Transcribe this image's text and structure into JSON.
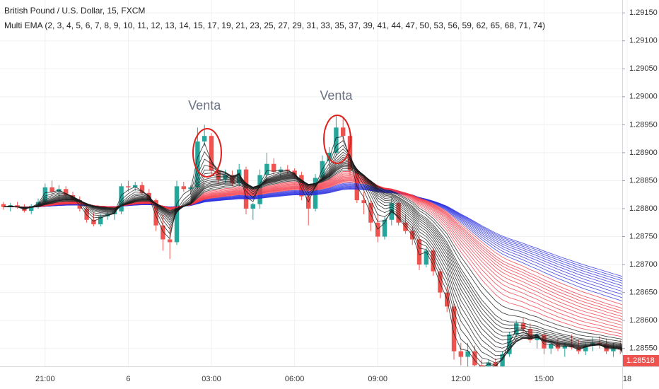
{
  "chart_data": {
    "type": "candlestick",
    "title": "British Pound / U.S. Dollar, 15, FXCM",
    "indicator_label": "Multi EMA (2, 3, 4, 5, 6, 7, 8, 9, 10, 11, 12, 13, 14, 15, 17, 19, 21, 23, 25, 27, 29, 31, 33, 35, 37, 39, 41, 44, 47, 50, 53, 56, 59, 62, 65, 68, 71, 74)",
    "annotations": [
      {
        "text": "Venta",
        "index": 29
      },
      {
        "text": "Venta",
        "index": 48
      }
    ],
    "categories": [
      null,
      null,
      null,
      null,
      null,
      null,
      "21:00",
      null,
      null,
      null,
      null,
      null,
      null,
      null,
      null,
      null,
      null,
      null,
      "6",
      null,
      null,
      null,
      null,
      null,
      null,
      null,
      null,
      null,
      null,
      null,
      "03:00",
      null,
      null,
      null,
      null,
      null,
      null,
      null,
      null,
      null,
      null,
      null,
      "06:00",
      null,
      null,
      null,
      null,
      null,
      null,
      null,
      null,
      null,
      null,
      null,
      "09:00",
      null,
      null,
      null,
      null,
      null,
      null,
      null,
      null,
      null,
      null,
      null,
      "12:00",
      null,
      null,
      null,
      null,
      null,
      null,
      null,
      null,
      null,
      null,
      null,
      "15:00",
      null,
      null,
      null,
      null,
      null,
      null,
      null,
      null,
      null,
      null,
      null,
      "18"
    ],
    "open": [
      1.28808,
      1.28803,
      1.28806,
      1.28802,
      1.28796,
      1.28805,
      1.28812,
      1.28838,
      1.2883,
      1.28835,
      1.28824,
      1.28815,
      1.288,
      1.2878,
      1.28772,
      1.28786,
      1.2879,
      1.28795,
      1.2884,
      1.28838,
      1.28842,
      1.28828,
      1.28815,
      1.2877,
      1.28745,
      1.2874,
      1.2884,
      1.28835,
      1.28838,
      1.2892,
      1.2893,
      1.28868,
      1.28852,
      1.2886,
      1.28845,
      1.2887,
      1.288,
      1.28808,
      1.2886,
      1.2888,
      1.28866,
      1.2887,
      1.28868,
      1.2886,
      1.28822,
      1.288,
      1.28855,
      1.28885,
      1.289,
      1.28945,
      1.2893,
      1.28868,
      1.28815,
      1.2881,
      1.28775,
      1.2875,
      1.2878,
      1.2881,
      1.28775,
      1.2876,
      1.28745,
      1.287,
      1.28725,
      1.28688,
      1.2865,
      1.28625,
      1.28545,
      1.28535,
      1.28545,
      1.2852,
      1.2851,
      1.28525,
      1.28515,
      1.2854,
      1.28575,
      1.28595,
      1.28585,
      1.28565,
      1.28575,
      1.2855,
      1.28558,
      1.2855,
      1.28555,
      1.28552,
      1.28545,
      1.28555,
      1.2856,
      1.28558,
      1.28545,
      1.2855,
      1.28548
    ],
    "high": [
      1.28812,
      1.2881,
      1.28812,
      1.28808,
      1.28808,
      1.28818,
      1.28845,
      1.2885,
      1.28842,
      1.2884,
      1.2883,
      1.28822,
      1.28805,
      1.28792,
      1.2879,
      1.28795,
      1.288,
      1.28845,
      1.2885,
      1.28848,
      1.28848,
      1.28835,
      1.28818,
      1.2879,
      1.2877,
      1.2885,
      1.28848,
      1.28842,
      1.28945,
      1.2895,
      1.28935,
      1.28875,
      1.2887,
      1.28868,
      1.2888,
      1.28875,
      1.2881,
      1.2887,
      1.289,
      1.2889,
      1.28875,
      1.28878,
      1.28872,
      1.28866,
      1.2883,
      1.28862,
      1.28895,
      1.2891,
      1.28968,
      1.28965,
      1.28935,
      1.28872,
      1.2883,
      1.28815,
      1.2879,
      1.28785,
      1.2882,
      1.28812,
      1.2879,
      1.28768,
      1.2875,
      1.2873,
      1.2873,
      1.28692,
      1.2866,
      1.2863,
      1.2856,
      1.2856,
      1.28555,
      1.2853,
      1.2853,
      1.28532,
      1.28545,
      1.2858,
      1.286,
      1.28605,
      1.28595,
      1.2858,
      1.2858,
      1.28565,
      1.28568,
      1.2856,
      1.28575,
      1.28565,
      1.2856,
      1.2857,
      1.28572,
      1.28568,
      1.2856,
      1.28565,
      1.28552
    ],
    "low": [
      1.28798,
      1.28795,
      1.288,
      1.28793,
      1.2879,
      1.288,
      1.28808,
      1.28825,
      1.28818,
      1.2882,
      1.2881,
      1.28795,
      1.28775,
      1.28768,
      1.28768,
      1.2878,
      1.2878,
      1.2879,
      1.2883,
      1.28832,
      1.28825,
      1.2881,
      1.2876,
      1.28725,
      1.2871,
      1.28735,
      1.2883,
      1.28825,
      1.28835,
      1.28912,
      1.2886,
      1.28845,
      1.28845,
      1.2884,
      1.2884,
      1.2879,
      1.2878,
      1.288,
      1.2885,
      1.2886,
      1.28855,
      1.28862,
      1.28855,
      1.28815,
      1.2877,
      1.28795,
      1.2885,
      1.28875,
      1.28895,
      1.2892,
      1.2886,
      1.2881,
      1.2879,
      1.2876,
      1.2874,
      1.28745,
      1.2877,
      1.2877,
      1.28755,
      1.28735,
      1.2869,
      1.28695,
      1.2868,
      1.2864,
      1.28615,
      1.2853,
      1.2852,
      1.28515,
      1.28505,
      1.285,
      1.28505,
      1.28508,
      1.2851,
      1.28535,
      1.2857,
      1.2858,
      1.2856,
      1.2855,
      1.2854,
      1.2854,
      1.28545,
      1.28535,
      1.28548,
      1.2854,
      1.28538,
      1.28545,
      1.2855,
      1.2854,
      1.28535,
      1.2854,
      1.28512
    ],
    "close": [
      1.28803,
      1.28806,
      1.28802,
      1.28796,
      1.28805,
      1.28812,
      1.28838,
      1.2883,
      1.28835,
      1.28824,
      1.28815,
      1.288,
      1.2878,
      1.28772,
      1.28786,
      1.2879,
      1.28795,
      1.2884,
      1.28838,
      1.28842,
      1.28828,
      1.28815,
      1.2877,
      1.28745,
      1.2874,
      1.2884,
      1.28835,
      1.28838,
      1.2892,
      1.2893,
      1.28868,
      1.28852,
      1.2886,
      1.28845,
      1.2887,
      1.288,
      1.28808,
      1.2886,
      1.2888,
      1.28866,
      1.2887,
      1.28868,
      1.2886,
      1.28822,
      1.288,
      1.28855,
      1.28885,
      1.289,
      1.28945,
      1.2893,
      1.28868,
      1.28815,
      1.2881,
      1.28775,
      1.2875,
      1.2878,
      1.2881,
      1.28775,
      1.2876,
      1.28745,
      1.287,
      1.28725,
      1.28688,
      1.2865,
      1.28625,
      1.28545,
      1.28535,
      1.28545,
      1.2852,
      1.2851,
      1.28525,
      1.28515,
      1.2854,
      1.28575,
      1.28595,
      1.28585,
      1.28565,
      1.28575,
      1.2855,
      1.28558,
      1.2855,
      1.28555,
      1.28552,
      1.28545,
      1.28555,
      1.2856,
      1.28558,
      1.28545,
      1.2855,
      1.28548,
      1.28518
    ],
    "up_color": "#26a69a",
    "down_color": "#ef5350",
    "ema_groups": [
      {
        "periods": [
          47,
          50,
          53,
          56,
          59,
          62,
          65,
          68,
          71,
          74
        ],
        "color": "#2b2fe0"
      },
      {
        "periods": [
          21,
          23,
          25,
          27,
          29,
          31,
          33,
          35,
          37,
          39,
          41,
          44
        ],
        "color": "#f23645"
      },
      {
        "periods": [
          2,
          3,
          4,
          5,
          6,
          7,
          8,
          9,
          10,
          11,
          12,
          13,
          14,
          15,
          17,
          19
        ],
        "color": "#1a1a1a"
      }
    ],
    "ylim": [
      1.28518,
      1.29173
    ],
    "yticks": [
      {
        "value": 1.2915,
        "label": "1.29150"
      },
      {
        "value": 1.291,
        "label": "1.29100"
      },
      {
        "value": 1.2905,
        "label": "1.29050"
      },
      {
        "value": 1.29,
        "label": "1.29000"
      },
      {
        "value": 1.2895,
        "label": "1.28950"
      },
      {
        "value": 1.289,
        "label": "1.28900"
      },
      {
        "value": 1.2885,
        "label": "1.28850"
      },
      {
        "value": 1.288,
        "label": "1.28800"
      },
      {
        "value": 1.2875,
        "label": "1.28750"
      },
      {
        "value": 1.287,
        "label": "1.28700"
      },
      {
        "value": 1.2865,
        "label": "1.28650"
      },
      {
        "value": 1.286,
        "label": "1.28600"
      },
      {
        "value": 1.2855,
        "label": "1.28550"
      }
    ],
    "last_price": {
      "value": 1.28518,
      "label": "1.28518"
    },
    "grid": true
  }
}
